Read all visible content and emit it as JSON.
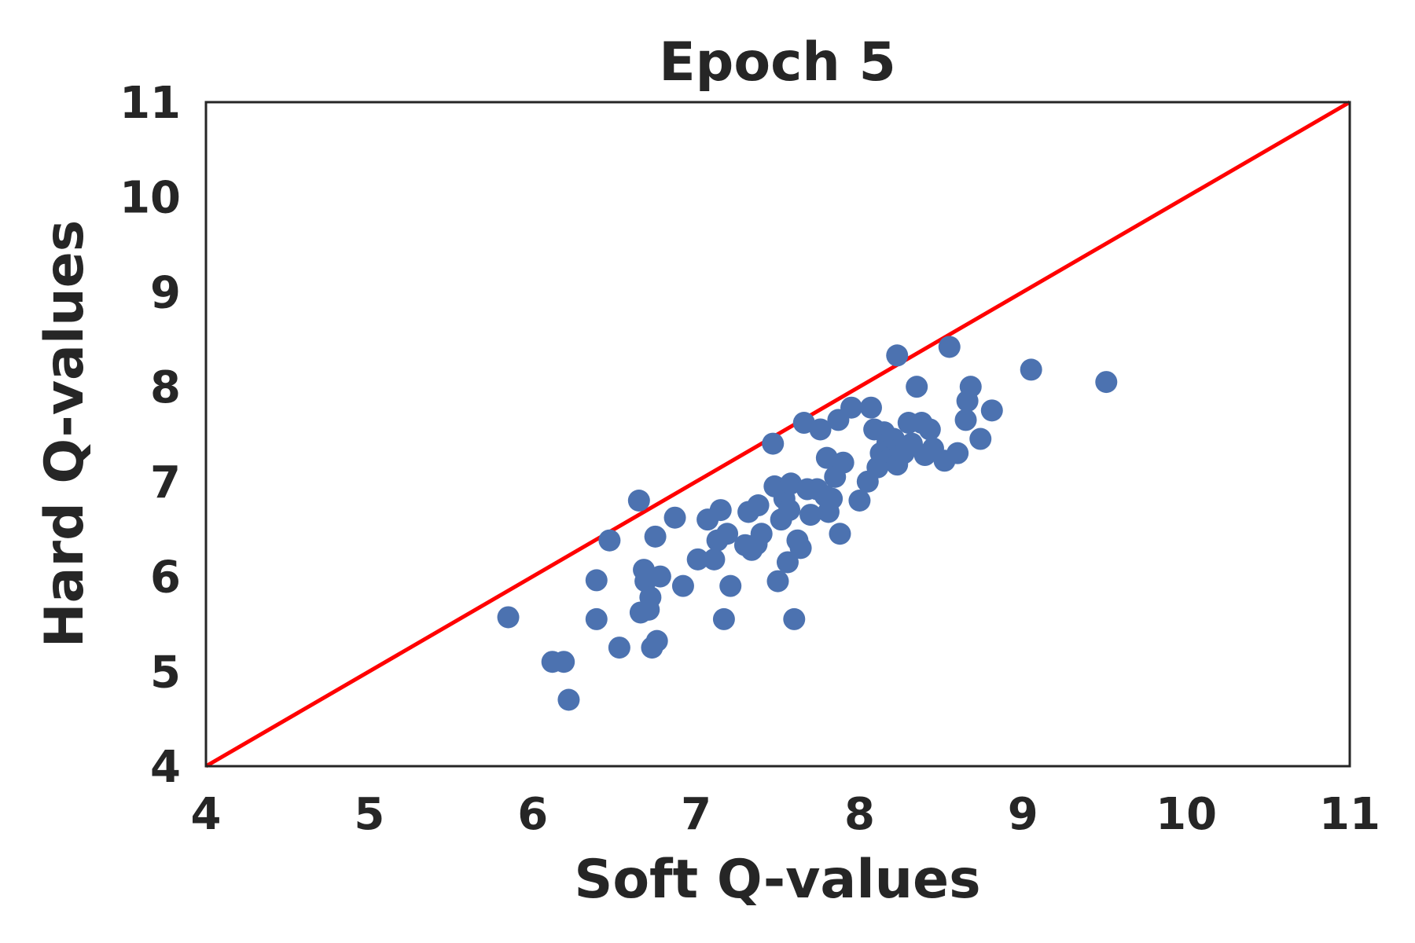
{
  "chart_data": {
    "type": "scatter",
    "title": "Epoch 5",
    "xlabel": "Soft Q-values",
    "ylabel": "Hard Q-values",
    "xlim": [
      4,
      11
    ],
    "ylim": [
      4,
      11
    ],
    "xticks": [
      "4",
      "5",
      "6",
      "7",
      "8",
      "9",
      "10",
      "11"
    ],
    "yticks": [
      "4",
      "5",
      "6",
      "7",
      "8",
      "9",
      "10",
      "11"
    ],
    "grid": false,
    "colors": {
      "points": "#4C72B0",
      "reference_line": "#FF0000",
      "frame": "#262626",
      "text": "#262626"
    },
    "reference_line": {
      "x": [
        4,
        11
      ],
      "y": [
        4,
        11
      ]
    },
    "series": [
      {
        "x": [
          5.85,
          6.12,
          6.19,
          6.22,
          6.39,
          6.39,
          6.47,
          6.53,
          6.65,
          6.66,
          6.68,
          6.69,
          6.71,
          6.72,
          6.73,
          6.75,
          6.76,
          6.78,
          6.87,
          6.92,
          7.01,
          7.07,
          7.11,
          7.13,
          7.15,
          7.17,
          7.19,
          7.21,
          7.3,
          7.32,
          7.34,
          7.37,
          7.38,
          7.4,
          7.47,
          7.48,
          7.5,
          7.52,
          7.54,
          7.56,
          7.57,
          7.58,
          7.6,
          7.62,
          7.64,
          7.66,
          7.68,
          7.7,
          7.74,
          7.76,
          7.79,
          7.8,
          7.81,
          7.83,
          7.85,
          7.87,
          7.88,
          7.9,
          7.95,
          8.0,
          8.05,
          8.07,
          8.09,
          8.11,
          8.13,
          8.15,
          8.17,
          8.19,
          8.21,
          8.23,
          8.25,
          8.27,
          8.3,
          8.32,
          8.35,
          8.38,
          8.4,
          8.43,
          8.45,
          8.52,
          8.55,
          8.6,
          8.65,
          8.66,
          8.68,
          8.74,
          8.81,
          9.05,
          9.51,
          8.23
        ],
        "y": [
          5.57,
          5.1,
          5.1,
          4.7,
          5.55,
          5.96,
          6.38,
          5.25,
          6.8,
          5.62,
          6.07,
          5.95,
          5.65,
          5.78,
          5.25,
          6.42,
          5.32,
          6.0,
          6.62,
          5.9,
          6.18,
          6.6,
          6.18,
          6.38,
          6.7,
          5.55,
          6.45,
          5.9,
          6.33,
          6.68,
          6.28,
          6.34,
          6.75,
          6.45,
          7.4,
          6.95,
          5.95,
          6.6,
          6.82,
          6.15,
          6.7,
          6.98,
          5.55,
          6.38,
          6.3,
          7.62,
          6.92,
          6.65,
          6.92,
          7.55,
          6.85,
          7.25,
          6.68,
          6.82,
          7.05,
          7.65,
          6.45,
          7.2,
          7.78,
          6.8,
          7.0,
          7.78,
          7.55,
          7.15,
          7.3,
          7.52,
          7.4,
          7.25,
          7.45,
          7.18,
          7.35,
          7.3,
          7.62,
          7.4,
          8.0,
          7.62,
          7.28,
          7.55,
          7.35,
          7.22,
          8.42,
          7.3,
          7.65,
          7.85,
          8.0,
          7.45,
          7.75,
          8.18,
          8.05,
          8.33
        ]
      }
    ]
  }
}
